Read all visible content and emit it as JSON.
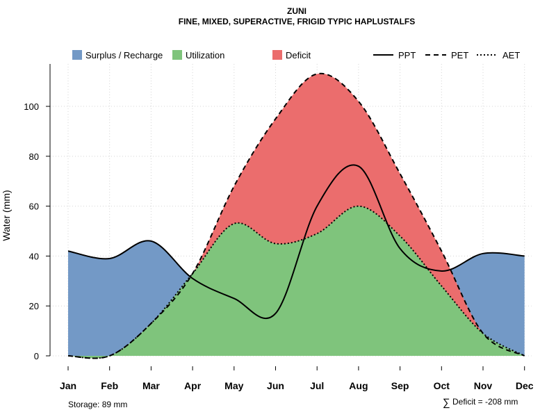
{
  "chart_data": {
    "type": "area",
    "title": "ZUNI",
    "subtitle": "FINE, MIXED, SUPERACTIVE, FRIGID TYPIC HAPLUSTALFS",
    "ylabel": "Water (mm)",
    "xlabel": "",
    "ylim": [
      0,
      117
    ],
    "yticks": [
      0,
      20,
      40,
      60,
      80,
      100
    ],
    "categories": [
      "Jan",
      "Feb",
      "Mar",
      "Apr",
      "May",
      "Jun",
      "Jul",
      "Aug",
      "Sep",
      "Oct",
      "Nov",
      "Dec"
    ],
    "grid": true,
    "legend_position": "top",
    "series": [
      {
        "name": "PPT",
        "style": "solid",
        "values": [
          42,
          39,
          46,
          31,
          23,
          17,
          60,
          76,
          43,
          34,
          41,
          40
        ]
      },
      {
        "name": "PET",
        "style": "dashed",
        "values": [
          0,
          0,
          13,
          33,
          68,
          95,
          113,
          102,
          73,
          42,
          9,
          0
        ]
      },
      {
        "name": "AET",
        "style": "dotted",
        "values": [
          0,
          0,
          13,
          33,
          53,
          45,
          49,
          60,
          48,
          28,
          9,
          0
        ]
      }
    ],
    "fills": [
      {
        "name": "Surplus / Recharge",
        "color": "#7399c6"
      },
      {
        "name": "Utilization",
        "color": "#7fc47c"
      },
      {
        "name": "Deficit",
        "color": "#eb6d6d"
      }
    ],
    "annotations": {
      "storage": "Storage: 89 mm",
      "deficit_symbol": "∑",
      "deficit": "Deficit = -208 mm"
    }
  }
}
